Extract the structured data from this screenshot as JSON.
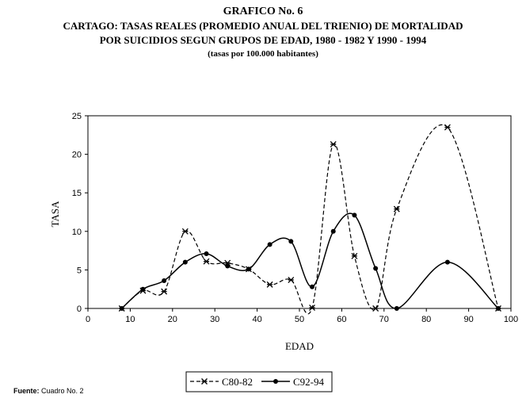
{
  "header": {
    "line1": "GRAFICO No. 6",
    "line2": "CARTAGO: TASAS REALES (PROMEDIO ANUAL DEL TRIENIO) DE MORTALIDAD",
    "line3": "POR SUICIDIOS SEGUN GRUPOS DE EDAD, 1980 - 1982 Y 1990 - 1994",
    "line4": "(tasas por 100.000 habitantes)"
  },
  "footer": {
    "source_label": "Fuente:",
    "source_text": "Cuadro No. 2"
  },
  "chart_data": {
    "type": "line",
    "xlabel": "EDAD",
    "ylabel": "TASA",
    "xlim": [
      0,
      100
    ],
    "ylim": [
      0,
      25
    ],
    "xticks": [
      0,
      10,
      20,
      30,
      40,
      50,
      60,
      70,
      80,
      90,
      100
    ],
    "yticks": [
      0,
      5,
      10,
      15,
      20,
      25
    ],
    "grid": false,
    "legend_position": "bottom-center",
    "series": [
      {
        "name": "C80-82",
        "style": "dashed",
        "marker": "star",
        "color": "#000000",
        "x": [
          8,
          13,
          18,
          23,
          28,
          33,
          38,
          43,
          48,
          53,
          58,
          63,
          68,
          73,
          85,
          97
        ],
        "y": [
          0,
          2.3,
          2.2,
          10,
          6.1,
          5.9,
          5.1,
          3.1,
          3.7,
          0.1,
          21.3,
          6.8,
          0,
          12.9,
          23.5,
          0
        ]
      },
      {
        "name": "C92-94",
        "style": "solid",
        "marker": "circle",
        "color": "#000000",
        "x": [
          8,
          13,
          18,
          23,
          28,
          33,
          38,
          43,
          48,
          53,
          58,
          63,
          68,
          73,
          85,
          97
        ],
        "y": [
          0,
          2.5,
          3.6,
          6,
          7.1,
          5.5,
          5.1,
          8.3,
          8.7,
          2.8,
          10,
          12.1,
          5.2,
          0,
          6,
          0
        ]
      }
    ]
  }
}
